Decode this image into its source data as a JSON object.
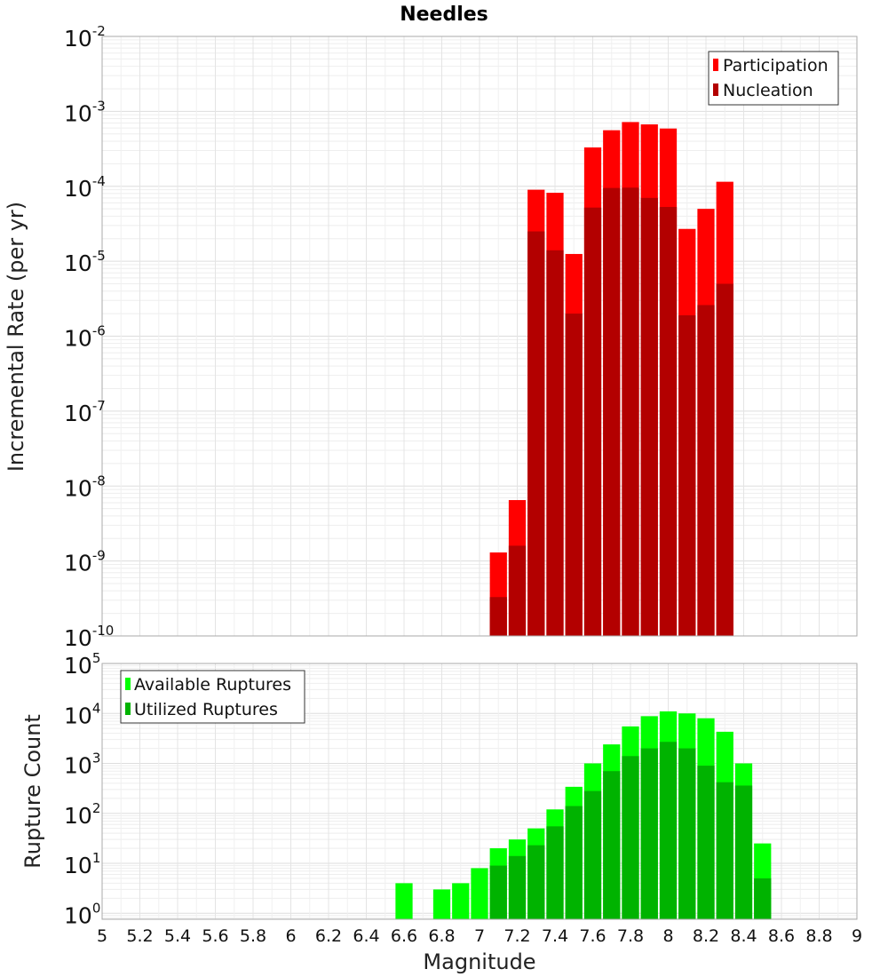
{
  "chart_data": {
    "title": "Needles",
    "xlabel": "Magnitude",
    "xlim": [
      5,
      9
    ],
    "bin_width": 0.1,
    "x_ticks": [
      "5",
      "5.2",
      "5.4",
      "5.6",
      "5.8",
      "6",
      "6.2",
      "6.4",
      "6.6",
      "6.8",
      "7",
      "7.2",
      "7.4",
      "7.6",
      "7.8",
      "8",
      "8.2",
      "8.4",
      "8.6",
      "8.8",
      "9"
    ],
    "panels": [
      {
        "id": "rate",
        "type": "bar",
        "scale": "log",
        "ylabel": "Incremental Rate (per yr)",
        "ylim_exp": [
          -10,
          -2
        ],
        "y_ticks": [
          {
            "base": "10",
            "exp": "-2"
          },
          {
            "base": "10",
            "exp": "-3"
          },
          {
            "base": "10",
            "exp": "-4"
          },
          {
            "base": "10",
            "exp": "-5"
          },
          {
            "base": "10",
            "exp": "-6"
          },
          {
            "base": "10",
            "exp": "-7"
          },
          {
            "base": "10",
            "exp": "-8"
          },
          {
            "base": "10",
            "exp": "-9"
          },
          {
            "base": "10",
            "exp": "-10"
          }
        ],
        "legend_position": "top-right",
        "categories": [
          7.1,
          7.2,
          7.3,
          7.4,
          7.5,
          7.6,
          7.7,
          7.8,
          7.9,
          8.0,
          8.1,
          8.2,
          8.3
        ],
        "series": [
          {
            "name": "Participation",
            "color": "#ff0000",
            "values": [
              1.3e-09,
              6.5e-09,
              9e-05,
              8.2e-05,
              1.25e-05,
              0.00033,
              0.00056,
              0.00072,
              0.00067,
              0.00059,
              2.7e-05,
              5e-05,
              0.000115
            ]
          },
          {
            "name": "Nucleation",
            "color": "#b30000",
            "values": [
              3.3e-10,
              1.6e-09,
              2.5e-05,
              1.4e-05,
              2e-06,
              5.2e-05,
              9.5e-05,
              9.6e-05,
              7e-05,
              5.3e-05,
              1.9e-06,
              2.6e-06,
              5e-06
            ]
          }
        ]
      },
      {
        "id": "count",
        "type": "bar",
        "scale": "log",
        "ylabel": "Rupture Count",
        "ylim_exp": [
          -0.12,
          5
        ],
        "y_ticks": [
          {
            "base": "10",
            "exp": "5"
          },
          {
            "base": "10",
            "exp": "4"
          },
          {
            "base": "10",
            "exp": "3"
          },
          {
            "base": "10",
            "exp": "2"
          },
          {
            "base": "10",
            "exp": "1"
          },
          {
            "base": "10",
            "exp": "0"
          }
        ],
        "legend_position": "top-left",
        "categories": [
          6.6,
          6.7,
          6.8,
          6.9,
          7.0,
          7.1,
          7.2,
          7.3,
          7.4,
          7.5,
          7.6,
          7.7,
          7.8,
          7.9,
          8.0,
          8.1,
          8.2,
          8.3,
          8.4,
          8.5
        ],
        "series": [
          {
            "name": "Available Ruptures",
            "color": "#00ff00",
            "values": [
              4,
              0,
              3,
              4,
              8,
              20,
              30,
              50,
              120,
              340,
              1000,
              2400,
              5500,
              8800,
              11000,
              10000,
              8000,
              4300,
              1000,
              25
            ]
          },
          {
            "name": "Utilized Ruptures",
            "color": "#00b300",
            "values": [
              0,
              0,
              0,
              0,
              0,
              9,
              14,
              23,
              55,
              140,
              280,
              700,
              1400,
              2000,
              2700,
              2000,
              900,
              420,
              360,
              5
            ]
          }
        ]
      }
    ]
  }
}
